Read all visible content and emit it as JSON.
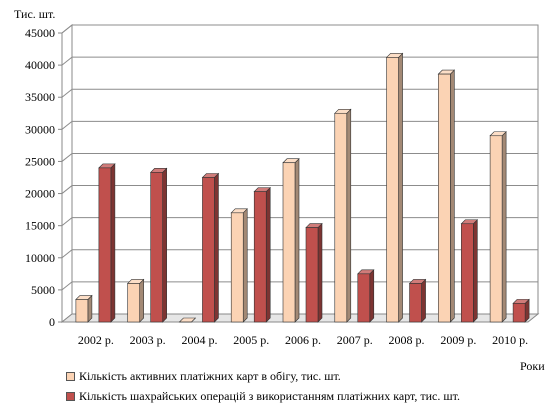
{
  "chart_data": {
    "type": "bar",
    "categories": [
      "2002 р.",
      "2003 р.",
      "2004 р.",
      "2005 р.",
      "2006 р.",
      "2007 р.",
      "2008 р.",
      "2009 р.",
      "2010 р."
    ],
    "series": [
      {
        "name": "Кількість активних платіжних карт в обігу, тис. шт.",
        "values": [
          3500,
          6000,
          0,
          17000,
          24800,
          32500,
          41200,
          38600,
          29000
        ],
        "color": "#fbd3b4"
      },
      {
        "name": "Кількість шахрайських операцій з використанням платіжних карт, тис. шт.",
        "values": [
          24000,
          23300,
          22500,
          20300,
          14700,
          7500,
          6000,
          15300,
          2900
        ],
        "color": "#c0504d"
      }
    ],
    "ylabel": "Тис. шт.",
    "xlabel": "Роки",
    "ylim": [
      0,
      45000
    ],
    "yticks": [
      0,
      5000,
      10000,
      15000,
      20000,
      25000,
      30000,
      35000,
      40000,
      45000
    ],
    "grid": true,
    "legend_position": "bottom-left"
  }
}
